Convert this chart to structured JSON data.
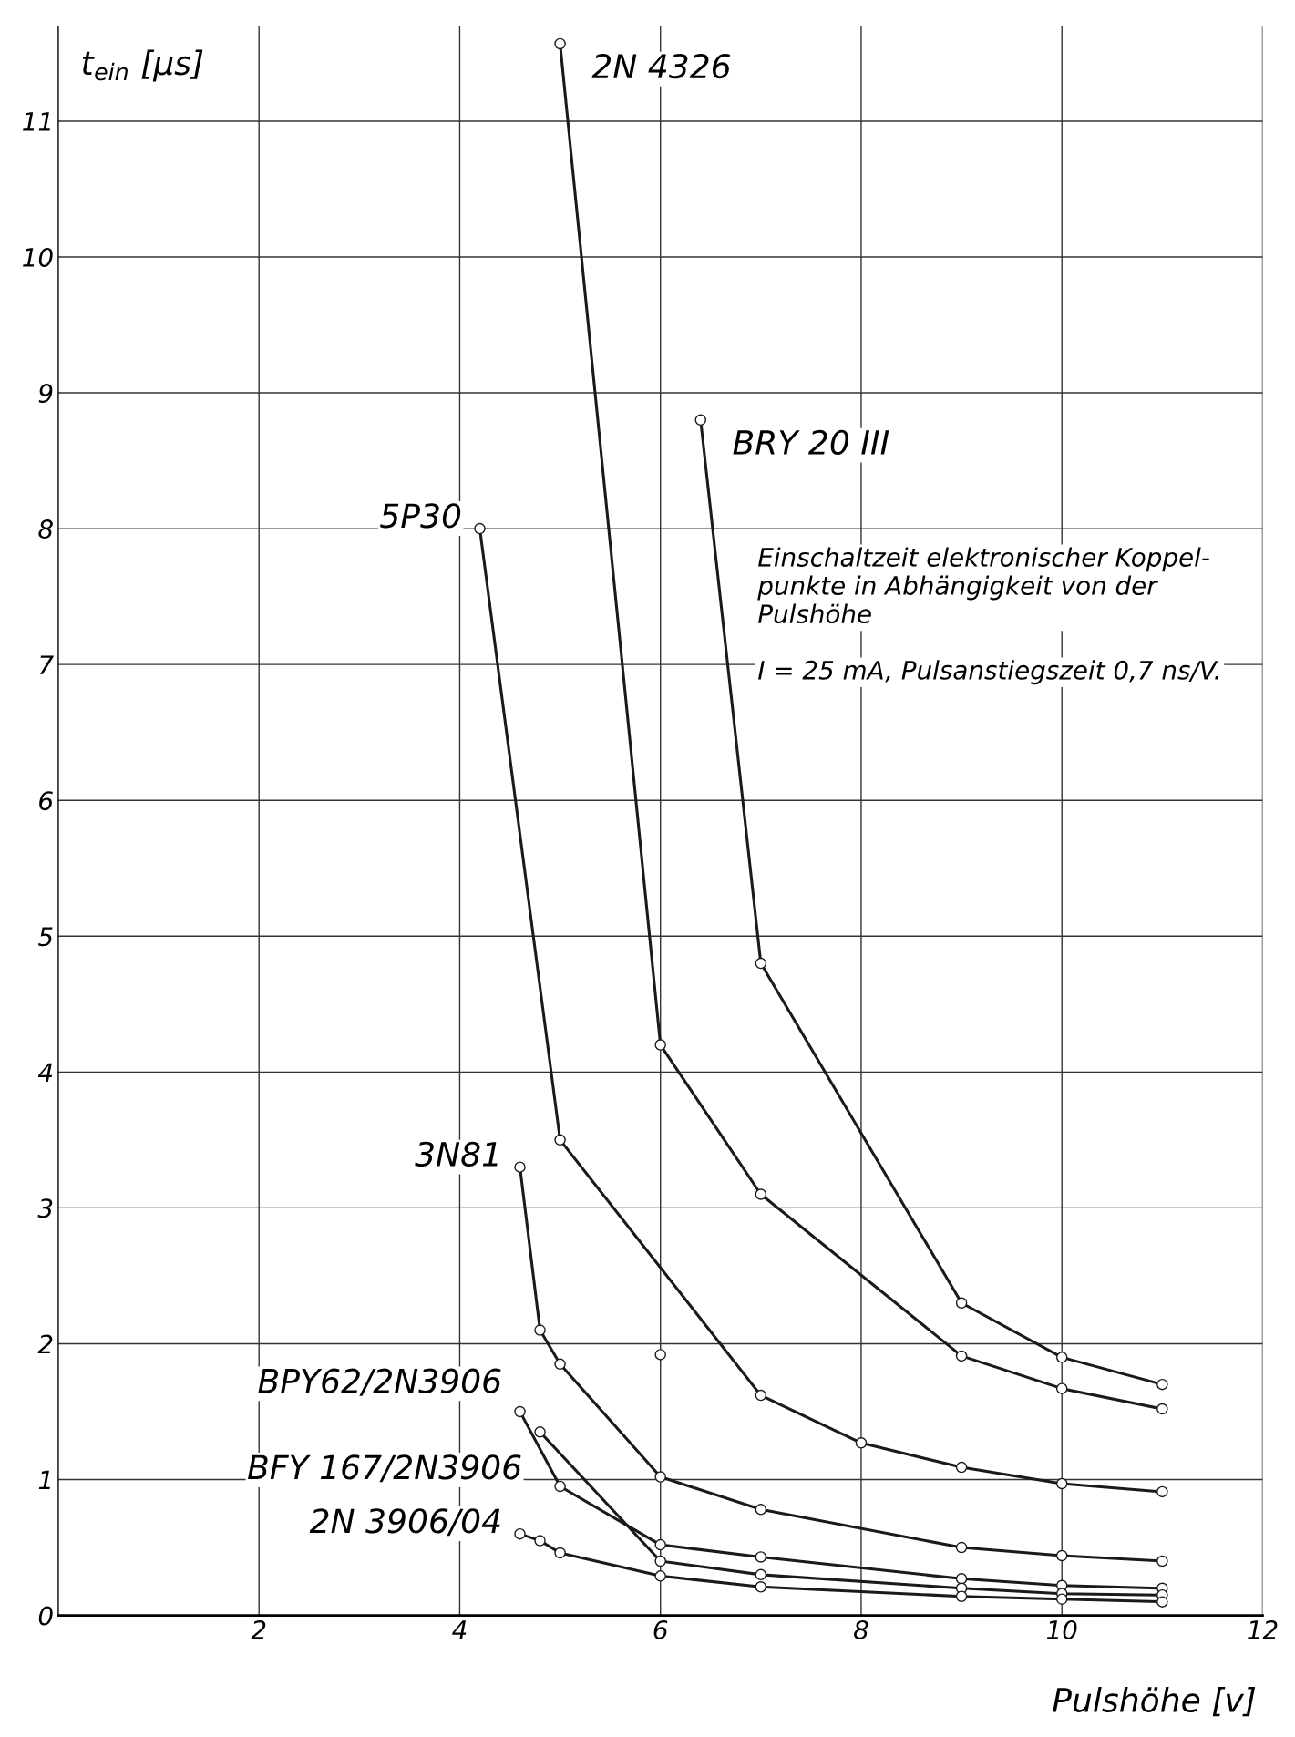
{
  "chart_data": {
    "type": "line",
    "xlabel": "Pulshöhe [v]",
    "ylabel": "t$_{ein}$ [µs]",
    "xlim": [
      0,
      12
    ],
    "ylim": [
      0,
      11.7
    ],
    "xticks": [
      2,
      4,
      6,
      8,
      10,
      12
    ],
    "yticks": [
      0,
      1,
      2,
      3,
      4,
      5,
      6,
      7,
      8,
      9,
      10,
      11
    ],
    "grid": true,
    "marker": "circle",
    "line_style": "solid",
    "annotations": [
      "Einschaltzeit elektronischer Koppel-\npunkte in Abhängigkeit von der\nPulshöhe",
      "I = 25 mA, Pulsanstiegszeit 0,7 ns/V."
    ],
    "series": [
      {
        "name": "2N 4326",
        "color": "#1a1a1a",
        "x": [
          5,
          6,
          7,
          9,
          10,
          11
        ],
        "values": [
          11.57,
          4.2,
          3.1,
          1.91,
          1.67,
          1.52
        ]
      },
      {
        "name": "BRY 20 III",
        "color": "#1a1a1a",
        "x": [
          6.4,
          7,
          9,
          10,
          11
        ],
        "values": [
          8.8,
          4.8,
          2.3,
          1.9,
          1.7
        ]
      },
      {
        "name": "5P30",
        "color": "#1a1a1a",
        "x": [
          4.2,
          5,
          7,
          8,
          9,
          10,
          11
        ],
        "values": [
          8.0,
          3.5,
          1.62,
          1.27,
          1.09,
          0.97,
          0.91
        ]
      },
      {
        "name": "3N81",
        "color": "#1a1a1a",
        "x": [
          4.6,
          4.8,
          5,
          6,
          7,
          9,
          10,
          11
        ],
        "values": [
          3.3,
          2.1,
          1.85,
          1.02,
          0.78,
          0.5,
          0.44,
          0.4
        ]
      },
      {
        "name": "BPY62/2N3906",
        "color": "#1a1a1a",
        "x": [
          4.6,
          5,
          6,
          7,
          9,
          10,
          11
        ],
        "values": [
          1.5,
          0.95,
          0.52,
          0.43,
          0.27,
          0.22,
          0.2
        ]
      },
      {
        "name": "BFY 167/2N3906",
        "color": "#1a1a1a",
        "x": [
          4.8,
          6,
          7,
          9,
          10,
          11
        ],
        "values": [
          1.35,
          0.4,
          0.3,
          0.2,
          0.16,
          0.15
        ]
      },
      {
        "name": "2N 3906/04",
        "color": "#1a1a1a",
        "x": [
          4.6,
          4.8,
          5,
          6,
          7,
          9,
          10,
          11
        ],
        "values": [
          0.6,
          0.55,
          0.46,
          0.29,
          0.21,
          0.14,
          0.12,
          0.1
        ]
      },
      {
        "type": "scatter",
        "color": "#1a1a1a",
        "x": [
          6
        ],
        "values": [
          1.92
        ]
      }
    ]
  }
}
